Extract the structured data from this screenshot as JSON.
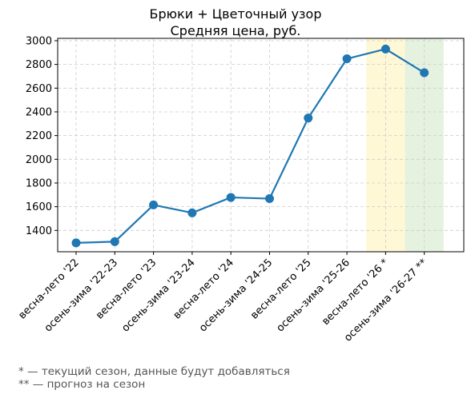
{
  "chart_data": {
    "type": "line",
    "title": "Брюки + Цветочный узор",
    "subtitle": "Средняя цена, руб.",
    "xlabel": "",
    "ylabel": "",
    "categories": [
      "весна-лето '22",
      "осень-зима '22-23",
      "весна-лето '23",
      "осень-зима '23-24",
      "весна-лето '24",
      "осень-зима '24-25",
      "весна-лето '25",
      "осень-зима '25-26",
      "весна-лето '26 *",
      "осень-зима '26-27 **"
    ],
    "values": [
      1295,
      1305,
      1615,
      1548,
      1678,
      1668,
      2348,
      2848,
      2930,
      2730
    ],
    "ylim": [
      1220,
      3020
    ],
    "yticks": [
      1400,
      1600,
      1800,
      2000,
      2200,
      2400,
      2600,
      2800,
      3000
    ],
    "grid": true,
    "line_color": "#1f77b4",
    "highlights": [
      {
        "category": "весна-лето '26 *",
        "color": "#fff8d6"
      },
      {
        "category": "осень-зима '26-27 **",
        "color": "#e6f2e0"
      }
    ]
  },
  "footnotes": [
    "* — текущий сезон, данные будут добавляться",
    "** — прогноз на сезон"
  ]
}
